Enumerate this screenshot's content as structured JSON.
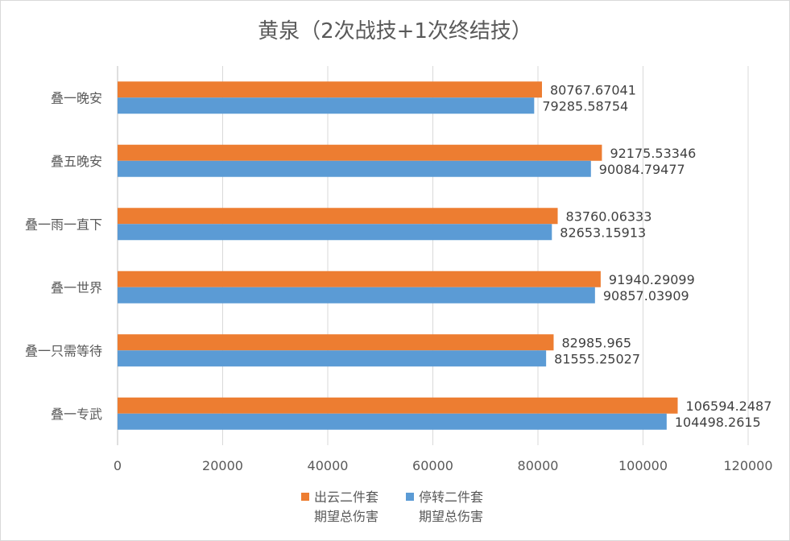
{
  "chart_data": {
    "type": "bar",
    "orientation": "horizontal",
    "title": "黄泉（2次战技+1次终结技）",
    "categories": [
      "叠一晚安",
      "叠五晚安",
      "叠一雨一直下",
      "叠一世界",
      "叠一只需等待",
      "叠一专武"
    ],
    "series": [
      {
        "name": "出云二件套\n期望总伤害",
        "color": "#ed7d31",
        "values": [
          80767.67041,
          92175.53346,
          83760.06333,
          91940.29099,
          82985.965,
          106594.2487
        ],
        "labels": [
          "80767.67041",
          "92175.53346",
          "83760.06333",
          "91940.29099",
          "82985.965",
          "106594.2487"
        ]
      },
      {
        "name": "停转二件套\n期望总伤害",
        "color": "#5b9bd5",
        "values": [
          79285.58754,
          90084.79477,
          82653.15913,
          90857.03909,
          81555.25027,
          104498.2615
        ],
        "labels": [
          "79285.58754",
          "90084.79477",
          "82653.15913",
          "90857.03909",
          "81555.25027",
          "104498.2615"
        ]
      }
    ],
    "xlim": [
      0,
      120000
    ],
    "xticks": [
      0,
      20000,
      40000,
      60000,
      80000,
      100000,
      120000
    ],
    "xtick_labels": [
      "0",
      "20000",
      "40000",
      "60000",
      "80000",
      "100000",
      "120000"
    ],
    "grid": true,
    "legend": "bottom"
  }
}
